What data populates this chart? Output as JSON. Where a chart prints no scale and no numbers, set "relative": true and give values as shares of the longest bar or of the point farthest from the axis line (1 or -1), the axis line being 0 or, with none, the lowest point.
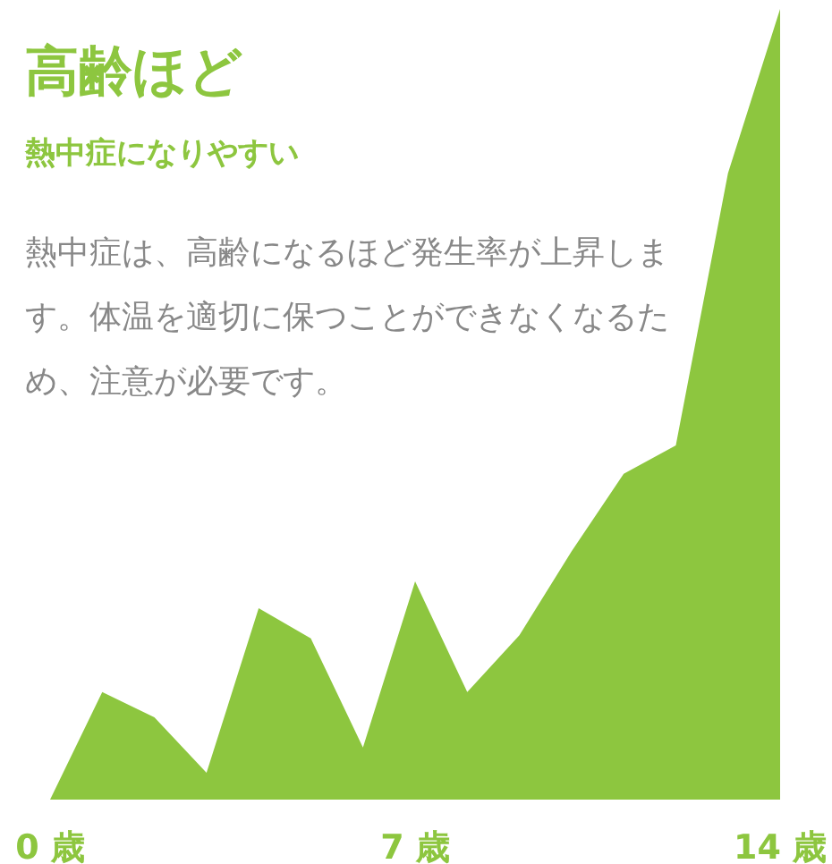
{
  "chart_data": {
    "type": "area",
    "title": "高齢ほど",
    "subtitle": "熱中症になりやすい",
    "annotations": [
      "熱中症は、高齢になるほど発生率が上昇します。体温を適切に保つことができなくなるため、注意が必要です。"
    ],
    "relative": true,
    "color": "#8dc63f",
    "x": [
      0,
      1,
      2,
      3,
      4,
      5,
      6,
      7,
      8,
      9,
      10,
      11,
      12,
      13,
      14
    ],
    "values": [
      0,
      0.136,
      0.104,
      0.034,
      0.242,
      0.204,
      0.066,
      0.276,
      0.136,
      0.208,
      0.314,
      0.412,
      0.448,
      0.792,
      1
    ],
    "xlim": [
      0,
      14
    ],
    "xticks": [
      {
        "value": 0,
        "label": "0 歳"
      },
      {
        "value": 7,
        "label": "7 歳"
      },
      {
        "value": 14,
        "label": "14 歳"
      }
    ],
    "grid": false,
    "legend": false
  }
}
